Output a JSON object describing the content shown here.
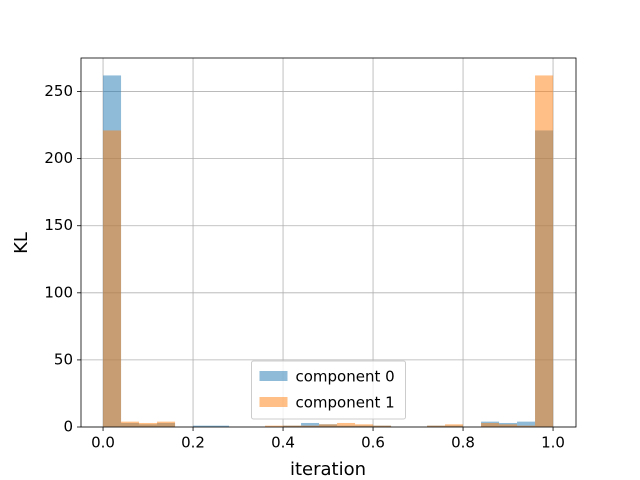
{
  "chart_data": {
    "type": "histogram",
    "xlabel": "iteration",
    "ylabel": "KL",
    "bins": [
      0,
      0.04,
      0.08,
      0.12,
      0.16,
      0.2,
      0.24,
      0.28,
      0.32,
      0.36,
      0.4,
      0.44,
      0.48,
      0.52,
      0.56,
      0.6,
      0.64,
      0.68,
      0.72,
      0.76,
      0.8,
      0.84,
      0.88,
      0.92,
      0.96,
      1
    ],
    "series": [
      {
        "name": "component 0",
        "color": "#1f77b4",
        "values": [
          262,
          3,
          2,
          3,
          0,
          1,
          1,
          0,
          0,
          0,
          1,
          3,
          2,
          1,
          1,
          1,
          0,
          0,
          1,
          1,
          0,
          4,
          3,
          4,
          221
        ]
      },
      {
        "name": "component 1",
        "color": "#ff7f0e",
        "values": [
          221,
          4,
          3,
          4,
          0,
          0,
          0,
          0,
          0,
          1,
          1,
          1,
          2,
          3,
          2,
          1,
          0,
          0,
          1,
          2,
          0,
          3,
          2,
          1,
          262
        ]
      }
    ],
    "opacity": 0.5,
    "xlim": [
      -0.049,
      1.051
    ],
    "ylim": [
      0,
      275
    ],
    "xticks": [
      {
        "value": 0,
        "label": "0.0"
      },
      {
        "value": 0.2,
        "label": "0.2"
      },
      {
        "value": 0.4,
        "label": "0.4"
      },
      {
        "value": 0.6,
        "label": "0.6"
      },
      {
        "value": 0.8,
        "label": "0.8"
      },
      {
        "value": 1,
        "label": "1.0"
      }
    ],
    "yticks": [
      0,
      50,
      100,
      150,
      200,
      250
    ],
    "grid": true,
    "legend": "lower center"
  }
}
